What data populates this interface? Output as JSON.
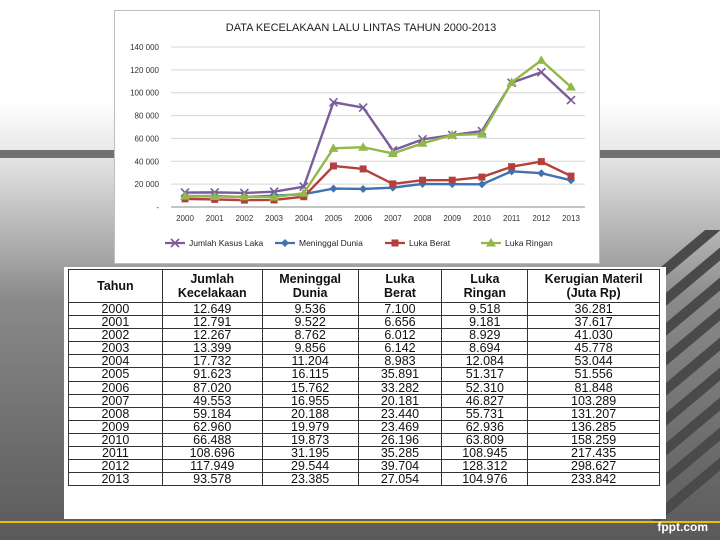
{
  "chart_data": {
    "type": "line",
    "title": "DATA KECELAKAAN LALU LINTAS TAHUN 2000-2013",
    "categories": [
      "2000",
      "2001",
      "2002",
      "2003",
      "2004",
      "2005",
      "2006",
      "2007",
      "2008",
      "2009",
      "2010",
      "2011",
      "2012",
      "2013"
    ],
    "ylim": [
      0,
      140000
    ],
    "yticks": [
      "-",
      "20 000",
      "40 000",
      "60 000",
      "80 000",
      "100 000",
      "120 000",
      "140 000"
    ],
    "series": [
      {
        "name": "Jumlah Kasus Laka",
        "color": "#7a5c9c",
        "marker": "x",
        "values": [
          12649,
          12791,
          12267,
          13399,
          17732,
          91623,
          87020,
          49553,
          59184,
          62960,
          66488,
          108696,
          117949,
          93578
        ]
      },
      {
        "name": "Meninggal Dunia",
        "color": "#3f72b0",
        "marker": "diamond",
        "values": [
          9536,
          9522,
          8762,
          9856,
          11204,
          16115,
          15762,
          16955,
          20188,
          19979,
          19873,
          31195,
          29544,
          23385
        ]
      },
      {
        "name": "Luka Berat",
        "color": "#b3403c",
        "marker": "square",
        "values": [
          7100,
          6656,
          6012,
          6142,
          8983,
          35891,
          33282,
          20181,
          23440,
          23469,
          26196,
          35285,
          39704,
          27054
        ]
      },
      {
        "name": "Luka Ringan",
        "color": "#92b84a",
        "marker": "triangle",
        "values": [
          9518,
          9181,
          8929,
          8694,
          12084,
          51317,
          52310,
          46827,
          55731,
          62936,
          63809,
          108945,
          128312,
          104976
        ]
      }
    ]
  },
  "table": {
    "headers": {
      "tahun": "Tahun",
      "jumlah_1": "Jumlah",
      "jumlah_2": "Kecelakaan",
      "meninggal_1": "Meninggal",
      "meninggal_2": "Dunia",
      "berat_1": "Luka",
      "berat_2": "Berat",
      "ringan_1": "Luka",
      "ringan_2": "Ringan",
      "rugi_1": "Kerugian Materil",
      "rugi_2": "(Juta Rp)"
    },
    "rows": [
      [
        "2000",
        "12.649",
        "9.536",
        "7.100",
        "9.518",
        "36.281"
      ],
      [
        "2001",
        "12.791",
        "9.522",
        "6.656",
        "9.181",
        "37.617"
      ],
      [
        "2002",
        "12.267",
        "8.762",
        "6.012",
        "8.929",
        "41.030"
      ],
      [
        "2003",
        "13.399",
        "9.856",
        "6.142",
        "8.694",
        "45.778"
      ],
      [
        "2004",
        "17.732",
        "11.204",
        "8.983",
        "12.084",
        "53.044"
      ],
      [
        "2005",
        "91.623",
        "16.115",
        "35.891",
        "51.317",
        "51.556"
      ],
      [
        "2006",
        "87.020",
        "15.762",
        "33.282",
        "52.310",
        "81.848"
      ],
      [
        "2007",
        "49.553",
        "16.955",
        "20.181",
        "46.827",
        "103.289"
      ],
      [
        "2008",
        "59.184",
        "20.188",
        "23.440",
        "55.731",
        "131.207"
      ],
      [
        "2009",
        "62.960",
        "19.979",
        "23.469",
        "62.936",
        "136.285"
      ],
      [
        "2010",
        "66.488",
        "19.873",
        "26.196",
        "63.809",
        "158.259"
      ],
      [
        "2011",
        "108.696",
        "31.195",
        "35.285",
        "108.945",
        "217.435"
      ],
      [
        "2012",
        "117.949",
        "29.544",
        "39.704",
        "128.312",
        "298.627"
      ],
      [
        "2013",
        "93.578",
        "23.385",
        "27.054",
        "104.976",
        "233.842"
      ]
    ]
  },
  "footer": {
    "brand": "fppt.com"
  }
}
